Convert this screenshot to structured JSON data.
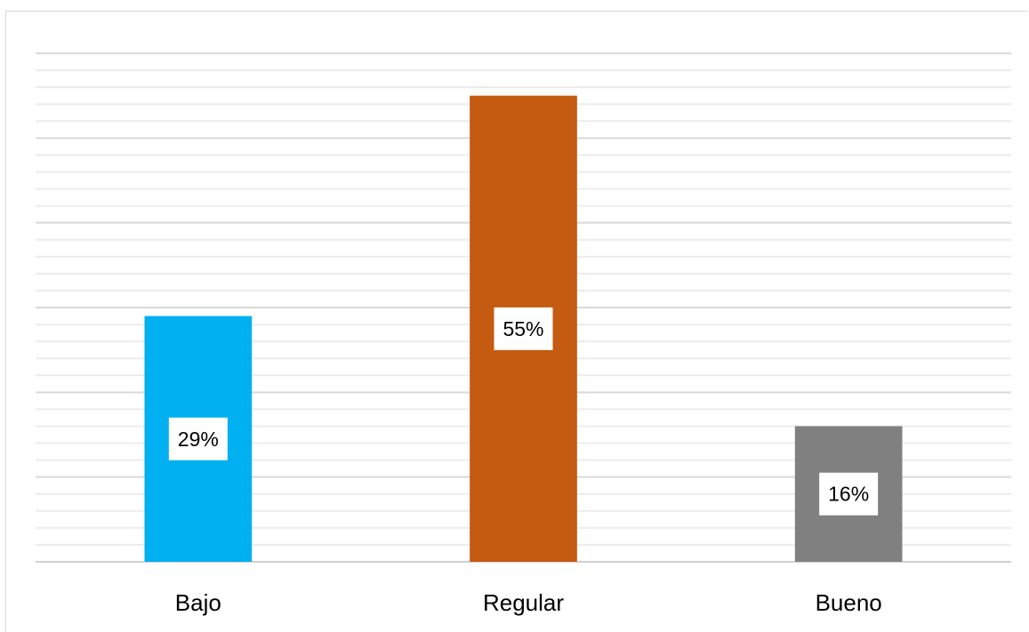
{
  "chart_data": {
    "type": "bar",
    "categories": [
      "Bajo",
      "Regular",
      "Bueno"
    ],
    "values": [
      29,
      55,
      16
    ],
    "data_labels": [
      "29%",
      "55%",
      "16%"
    ],
    "colors": [
      "#00b0f0",
      "#c55a11",
      "#808080"
    ],
    "title": "",
    "xlabel": "",
    "ylabel": "",
    "ylim": [
      0,
      60
    ],
    "grid": true,
    "legend": "none"
  }
}
